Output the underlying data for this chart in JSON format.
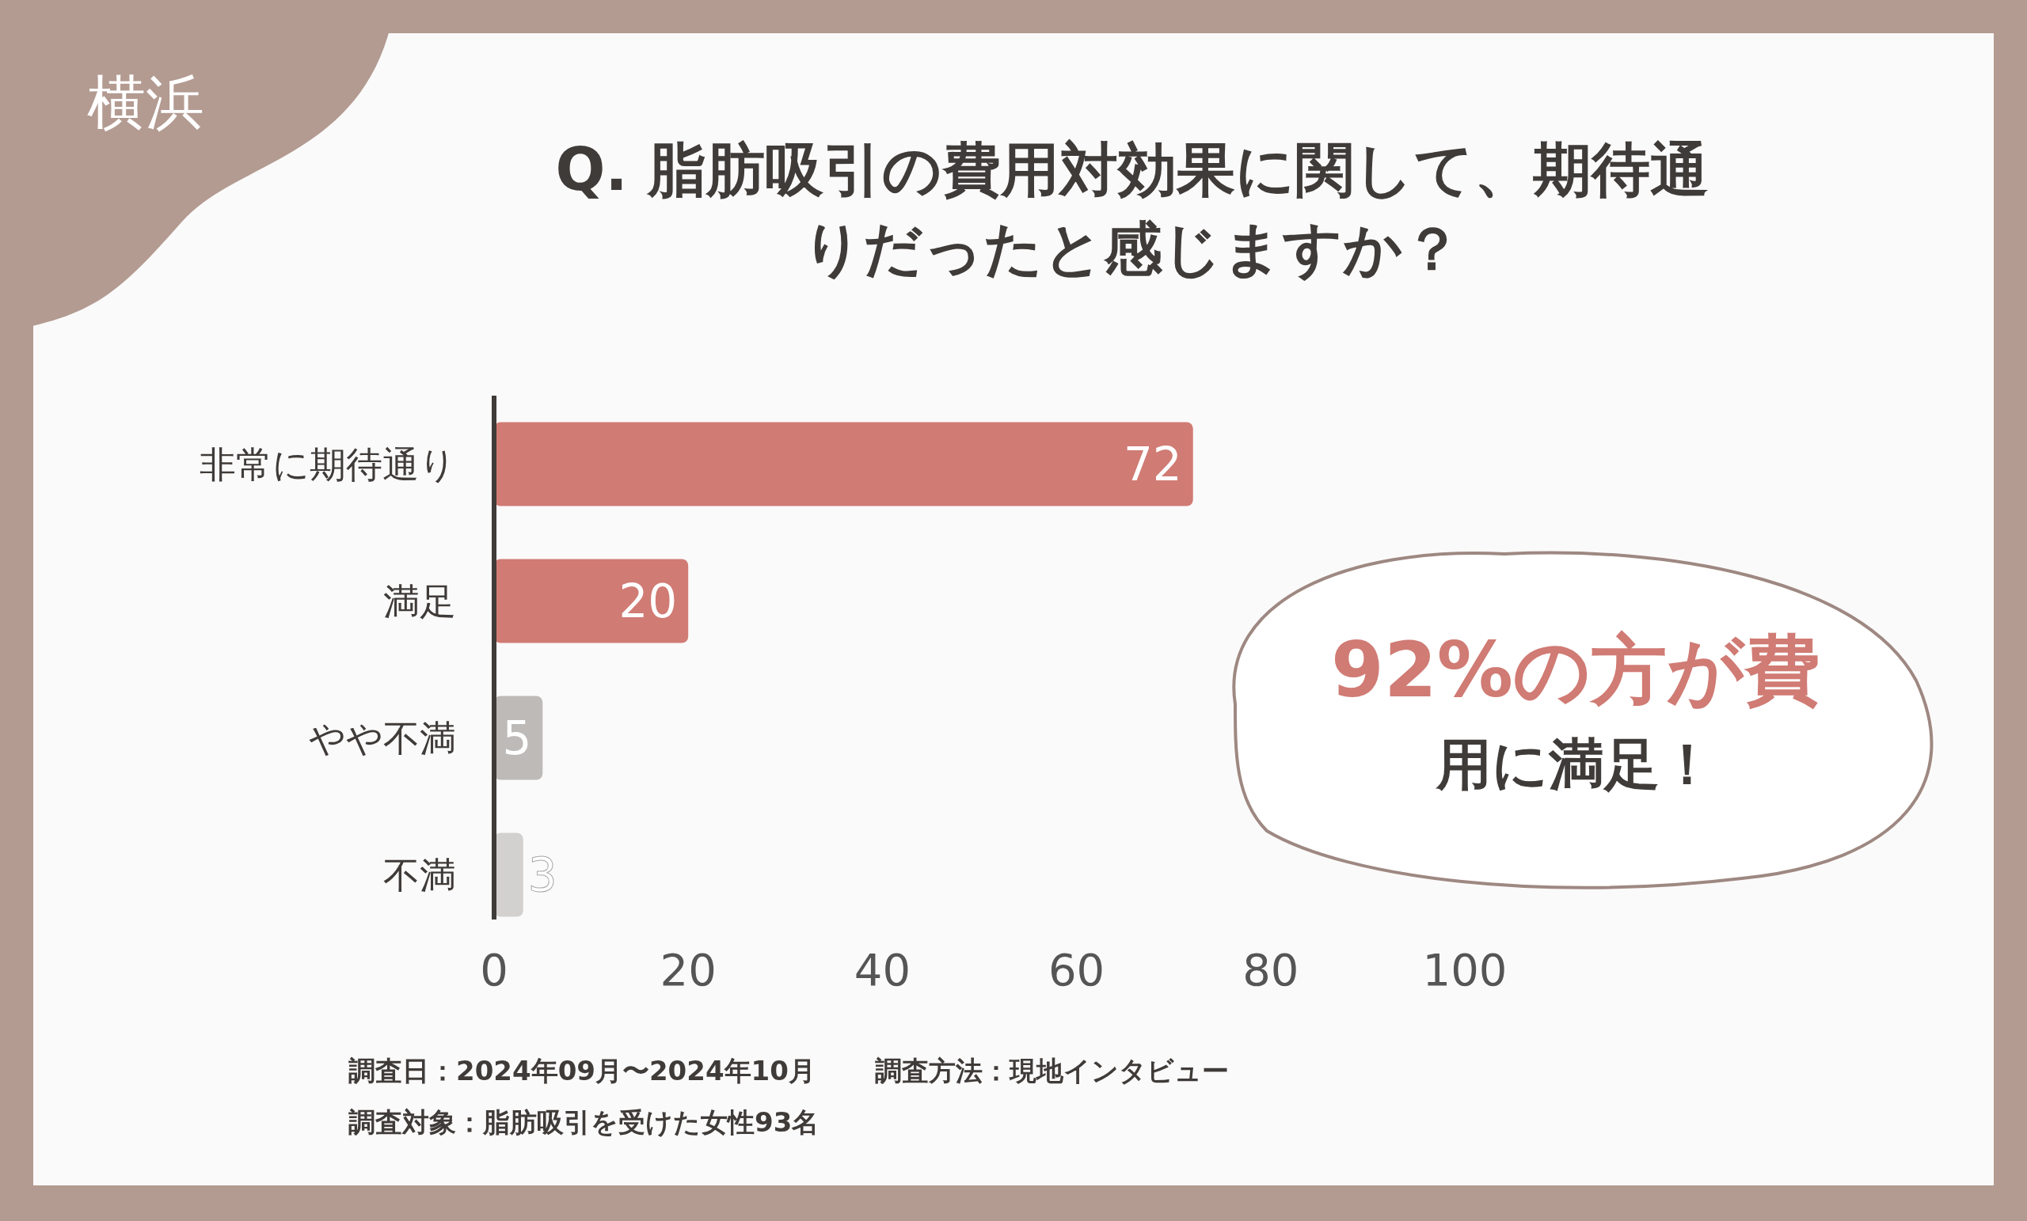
{
  "chart_data": {
    "type": "bar",
    "orientation": "horizontal",
    "title": "Q. 脂肪吸引の費用対効果に関して、期待通りだったと感じますか？",
    "categories": [
      "非常に期待通り",
      "満足",
      "やや不満",
      "不満"
    ],
    "values": [
      72,
      20,
      5,
      3
    ],
    "colors": [
      "#d07b74",
      "#d07b74",
      "#bdbab8",
      "#d3d1cf"
    ],
    "xlim": [
      0,
      100
    ],
    "xticks": [
      0,
      20,
      40,
      60,
      80,
      100
    ],
    "data_labels": true,
    "annotations": [
      "横浜",
      "92%の方が費用に満足！",
      "調査日：2024年09月〜2024年10月",
      "調査方法：現地インタビュー",
      "調査対象：脂肪吸引を受けた女性93名"
    ]
  }
}
